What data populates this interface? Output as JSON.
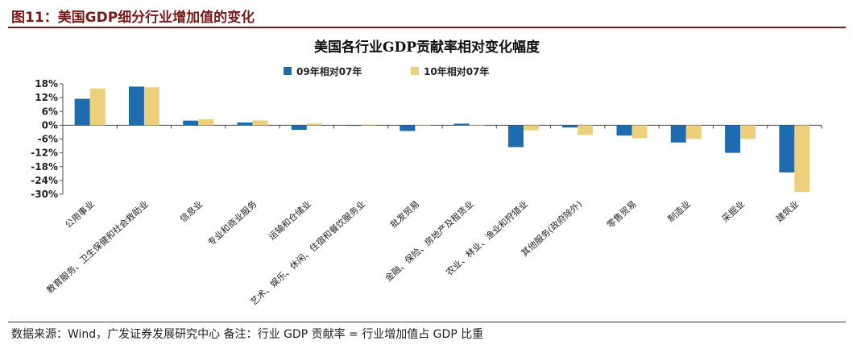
{
  "figure": {
    "title": "图11：美国GDP细分行业增加值的变化",
    "source": "数据来源：Wind，广发证券发展研究中心    备注：行业 GDP 贡献率 = 行业增加值占 GDP 比重"
  },
  "chart_data": {
    "type": "bar",
    "title": "美国各行业GDP贡献率相对变化幅度",
    "ylim": [
      -30,
      18
    ],
    "yticks": [
      18,
      12,
      6,
      0,
      -6,
      -12,
      -18,
      -24,
      -30
    ],
    "ytick_labels": [
      "18%",
      "12%",
      "6%",
      "0%",
      "-6%",
      "-12%",
      "-18%",
      "-24%",
      "-30%"
    ],
    "legend_position": "top-center",
    "grid": false,
    "categories": [
      "公用事业",
      "教育服务、卫生保健和社会救助业",
      "信息业",
      "专业和商业服务",
      "运输和仓储业",
      "艺术、娱乐、休闲、住宿和餐饮服务业",
      "批发贸易",
      "金融、保险、房地产及租赁业",
      "农业、林业、渔业和狩猎业",
      "其他服务(政府除外)",
      "零售贸易",
      "制造业",
      "采掘业",
      "建筑业"
    ],
    "series": [
      {
        "name": "09年相对07年",
        "color": "#1f6bb0",
        "values": [
          11.5,
          16.8,
          2.0,
          1.2,
          -2.0,
          -0.2,
          -2.5,
          0.7,
          -9.5,
          -1.0,
          -4.5,
          -7.5,
          -12.0,
          -20.5
        ]
      },
      {
        "name": "10年相对07年",
        "color": "#ecd07c",
        "values": [
          16.0,
          16.5,
          2.6,
          2.1,
          0.8,
          0.3,
          -0.2,
          -0.3,
          -2.2,
          -4.2,
          -5.6,
          -6.0,
          -6.0,
          -29.0
        ]
      }
    ]
  }
}
